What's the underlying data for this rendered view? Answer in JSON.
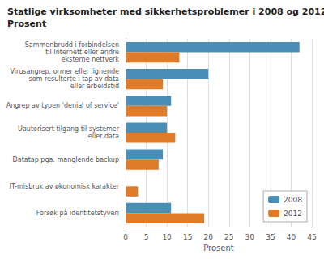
{
  "chart_data": {
    "type": "bar",
    "orientation": "horizontal",
    "title": "Statlige virksomheter med sikkerhetsproblemer i 2008 og 2012.",
    "subtitle": "Prosent",
    "categories": [
      "Sammenbrudd i forbindelsen\ntil Internett eller andre\neksterne nettverk",
      "Virusangrep, ormer eller lignende\nsom resulterte i tap av data\neller arbeidstid",
      "Angrep av typen 'denial of service'",
      "Uautorisert tilgang til systemer\neller data",
      "Datatap pga. manglende backup",
      "IT-misbruk av økonomisk karakter",
      "Forsøk på identitetstyveri"
    ],
    "series": [
      {
        "name": "2008",
        "color": "#4a8db5",
        "values": [
          42,
          20,
          11,
          10,
          9,
          0,
          11
        ]
      },
      {
        "name": "2012",
        "color": "#e07b2a",
        "values": [
          13,
          9,
          10,
          12,
          8,
          3,
          19
        ]
      }
    ],
    "xlabel": "Prosent",
    "xlim": [
      0,
      45
    ],
    "xticks": [
      0,
      5,
      10,
      15,
      20,
      25,
      30,
      35,
      40,
      45
    ],
    "grid": true,
    "legend": "lower right"
  }
}
